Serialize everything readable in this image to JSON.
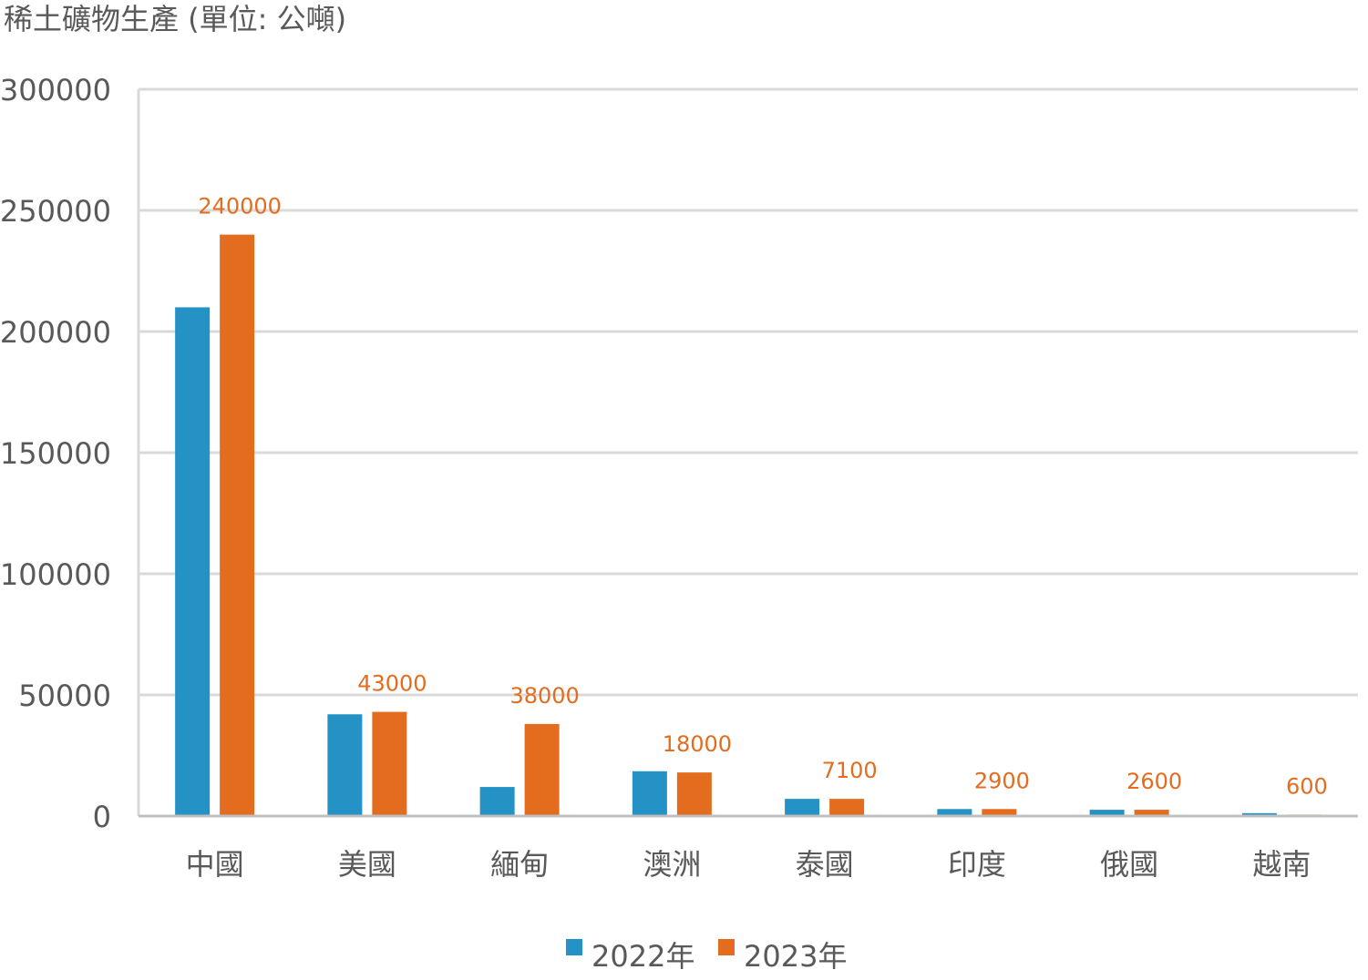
{
  "chart_data": {
    "type": "bar",
    "title": "稀土礦物生產 (單位: 公噸)",
    "xlabel": "",
    "ylabel": "",
    "categories": [
      "中國",
      "美國",
      "緬甸",
      "澳洲",
      "泰國",
      "印度",
      "俄國",
      "越南"
    ],
    "series": [
      {
        "name": "2022年",
        "color": "#2492C4",
        "values": [
          210000,
          42000,
          12000,
          18500,
          7100,
          2900,
          2600,
          1200
        ]
      },
      {
        "name": "2023年",
        "color": "#E46C1E",
        "values": [
          240000,
          43000,
          38000,
          18000,
          7100,
          2900,
          2600,
          600
        ],
        "data_labels": [
          "240000",
          "43000",
          "38000",
          "18000",
          "7100",
          "2900",
          "2600",
          "600"
        ]
      }
    ],
    "ylim": [
      0,
      300000
    ],
    "yticks": [
      "0",
      "50000",
      "100000",
      "150000",
      "200000",
      "250000",
      "300000"
    ],
    "grid": true,
    "legend_position": "bottom"
  }
}
